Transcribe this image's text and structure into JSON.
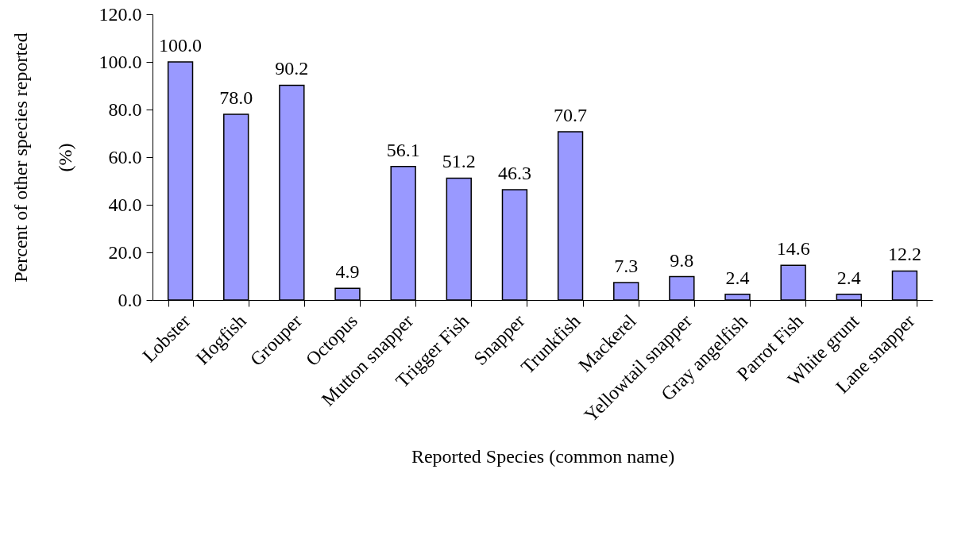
{
  "chart_data": {
    "type": "bar",
    "xlabel": "Reported Species (common name)",
    "ylabel": "Percent of other species reported (%)",
    "categories": [
      "Lobster",
      "Hogfish",
      "Grouper",
      "Octopus",
      "Mutton snapper",
      "Trigger Fish",
      "Snapper",
      "Trunkfish",
      "Mackerel",
      "Yellowtail snapper",
      "Gray angelfish",
      "Parrot Fish",
      "White grunt",
      "Lane snapper"
    ],
    "values": [
      100.0,
      78.0,
      90.2,
      4.9,
      56.1,
      51.2,
      46.3,
      70.7,
      7.3,
      9.8,
      2.4,
      14.6,
      2.4,
      12.2
    ],
    "value_labels": [
      "100.0",
      "78.0",
      "90.2",
      "4.9",
      "56.1",
      "51.2",
      "46.3",
      "70.7",
      "7.3",
      "9.8",
      "2.4",
      "14.6",
      "2.4",
      "12.2"
    ],
    "color": "#9999ff",
    "ylim": [
      0,
      120
    ],
    "yticks": [
      {
        "value": 0,
        "label": "0.0"
      },
      {
        "value": 20,
        "label": "20.0"
      },
      {
        "value": 40,
        "label": "40.0"
      },
      {
        "value": 60,
        "label": "60.0"
      },
      {
        "value": 80,
        "label": "80.0"
      },
      {
        "value": 100,
        "label": "100.0"
      },
      {
        "value": 120,
        "label": "120.0"
      }
    ],
    "grid": false
  }
}
